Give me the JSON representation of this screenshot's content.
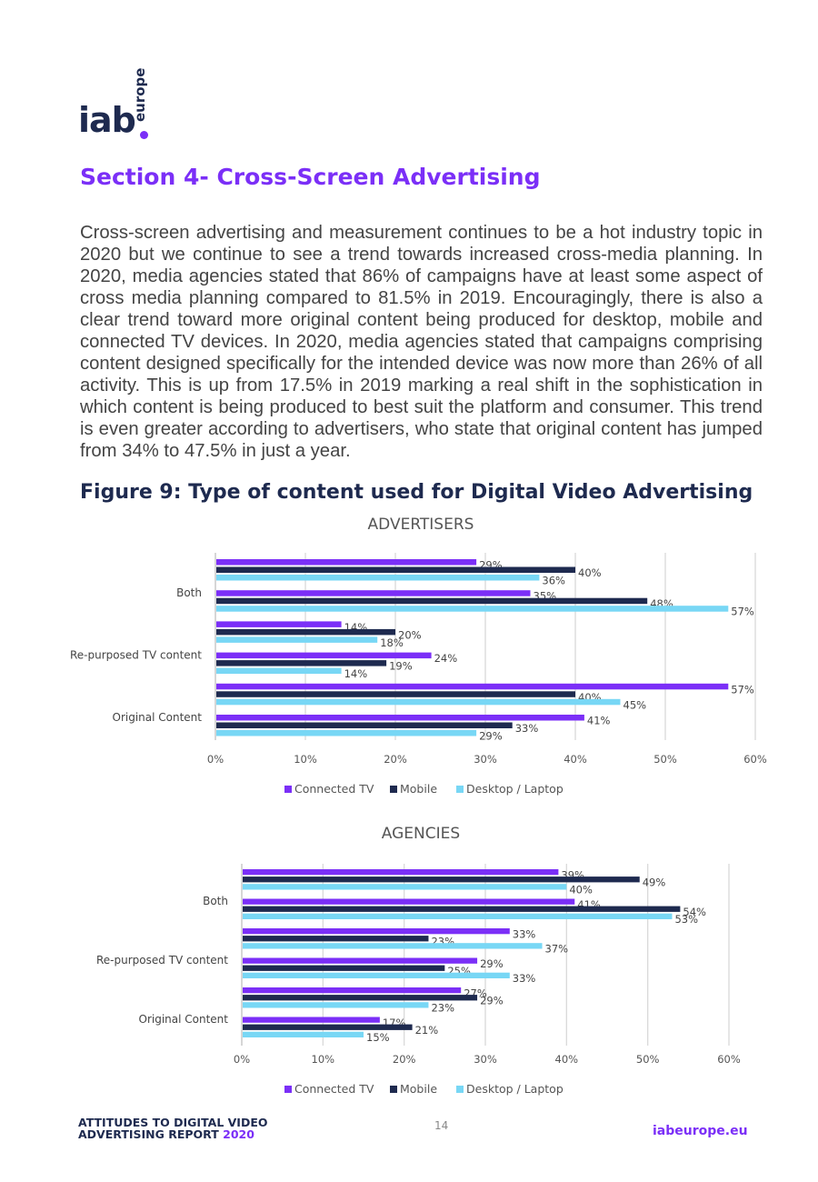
{
  "logo": {
    "main": "iab",
    "side": "europe"
  },
  "section_title": "Section 4- Cross-Screen Advertising",
  "body_text": "Cross-screen advertising and measurement continues to be a hot industry topic in 2020 but we continue to see a trend towards increased cross-media planning. In 2020, media agencies stated that 86% of campaigns have at least some aspect of cross media planning compared to 81.5% in 2019. Encouragingly, there is also a clear trend toward more original content being produced for desktop, mobile and connected TV devices. In 2020, media agencies stated that campaigns comprising content designed specifically for the intended device was now more than 26% of all activity. This is up from 17.5% in 2019 marking a real shift in the sophistication in which content is being produced to best suit the platform and consumer. This trend is even greater according to advertisers, who state that original content has jumped from 34% to 47.5% in just a year.",
  "figure_title": "Figure 9: Type of content used for Digital Video Advertising",
  "colors": {
    "connected_tv": "#7b2ff7",
    "mobile": "#1e2a4f",
    "desktop": "#78d7f5",
    "grid": "#d9d9d9"
  },
  "chart_data": [
    {
      "type": "bar",
      "orientation": "horizontal",
      "title": "ADVERTISERS",
      "category_labels": [
        "Both",
        "",
        "Re-purposed TV content",
        "",
        "Original Content",
        ""
      ],
      "groups": [
        {
          "label": "",
          "values": [
            29,
            40,
            36
          ]
        },
        {
          "label": "Both",
          "values": [
            35,
            48,
            57
          ]
        },
        {
          "label": "",
          "values": [
            14,
            20,
            18
          ]
        },
        {
          "label": "Re-purposed TV content",
          "values": [
            24,
            19,
            14
          ]
        },
        {
          "label": "",
          "values": [
            57,
            40,
            45
          ]
        },
        {
          "label": "Original Content",
          "values": [
            41,
            33,
            29
          ]
        }
      ],
      "series": [
        "Connected TV",
        "Mobile",
        "Desktop / Laptop"
      ],
      "xlim": [
        0,
        60
      ],
      "ticks": [
        "0%",
        "10%",
        "20%",
        "30%",
        "40%",
        "50%",
        "60%"
      ],
      "value_suffix": "%"
    },
    {
      "type": "bar",
      "orientation": "horizontal",
      "title": "AGENCIES",
      "groups": [
        {
          "label": "",
          "values": [
            39,
            49,
            40
          ]
        },
        {
          "label": "Both",
          "values": [
            41,
            54,
            53
          ]
        },
        {
          "label": "",
          "values": [
            33,
            23,
            37
          ]
        },
        {
          "label": "Re-purposed TV content",
          "values": [
            29,
            25,
            33
          ]
        },
        {
          "label": "",
          "values": [
            27,
            29,
            23
          ]
        },
        {
          "label": "Original Content",
          "values": [
            17,
            21,
            15
          ]
        }
      ],
      "series": [
        "Connected TV",
        "Mobile",
        "Desktop / Laptop"
      ],
      "xlim": [
        0,
        60
      ],
      "ticks": [
        "0%",
        "10%",
        "20%",
        "30%",
        "40%",
        "50%",
        "60%"
      ],
      "value_suffix": "%"
    }
  ],
  "footer": {
    "report_line1": "ATTITUDES TO DIGITAL VIDEO",
    "report_line2": "ADVERTISING REPORT",
    "report_year": "2020",
    "page_number": "14",
    "site": "iabeurope.eu"
  }
}
